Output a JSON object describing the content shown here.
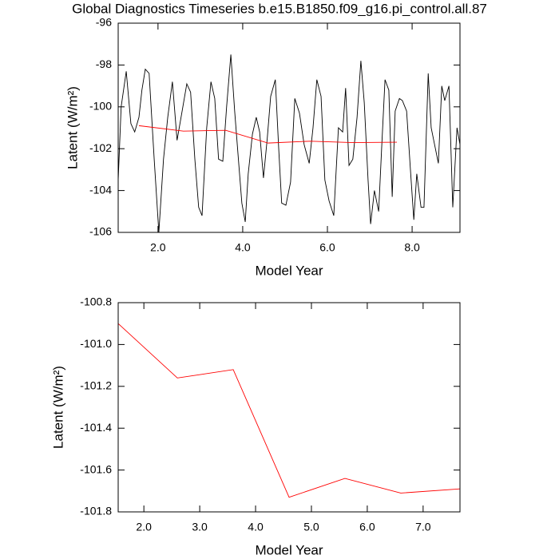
{
  "chart_data": [
    {
      "type": "line",
      "title": "Global Diagnostics Timeseries b.e15.B1850.f09_g16.pi_control.all.87",
      "x_label": "Model Year",
      "y_label": "Latent (W/m²)",
      "xlim": [
        1.06,
        9.13
      ],
      "ylim": [
        -106,
        -96
      ],
      "xticks": [
        {
          "value": 2,
          "label": "2.0"
        },
        {
          "value": 4,
          "label": "4.0"
        },
        {
          "value": 6,
          "label": "6.0"
        },
        {
          "value": 8,
          "label": "8.0"
        }
      ],
      "yticks": [
        -106,
        -104,
        -102,
        -100,
        -98,
        -96
      ],
      "series": [
        {
          "color": "#000000",
          "x": [
            1.06,
            1.13,
            1.25,
            1.36,
            1.45,
            1.55,
            1.62,
            1.7,
            1.79,
            1.91,
            2.02,
            2.13,
            2.23,
            2.34,
            2.45,
            2.57,
            2.68,
            2.77,
            2.87,
            2.96,
            3.04,
            3.15,
            3.25,
            3.34,
            3.43,
            3.53,
            3.62,
            3.72,
            3.81,
            3.91,
            3.98,
            4.06,
            4.13,
            4.23,
            4.32,
            4.4,
            4.49,
            4.58,
            4.66,
            4.77,
            4.85,
            4.92,
            5.02,
            5.13,
            5.23,
            5.34,
            5.45,
            5.57,
            5.66,
            5.75,
            5.85,
            5.94,
            6.04,
            6.15,
            6.26,
            6.36,
            6.43,
            6.51,
            6.6,
            6.7,
            6.79,
            6.87,
            6.96,
            7.02,
            7.11,
            7.21,
            7.28,
            7.36,
            7.45,
            7.53,
            7.6,
            7.7,
            7.77,
            7.87,
            7.96,
            8.04,
            8.11,
            8.21,
            8.28,
            8.38,
            8.45,
            8.53,
            8.62,
            8.7,
            8.77,
            8.87,
            8.96,
            9.06,
            9.13
          ],
          "values": [
            -103.5,
            -100,
            -98.3,
            -100.8,
            -101.2,
            -100.5,
            -99.2,
            -98.2,
            -98.4,
            -102.5,
            -106,
            -102.5,
            -100.5,
            -98.8,
            -101.6,
            -100.2,
            -98.9,
            -99.3,
            -102.5,
            -104.8,
            -105.2,
            -101,
            -98.8,
            -99.6,
            -102.5,
            -102.6,
            -100,
            -97.5,
            -100.2,
            -102.8,
            -104.6,
            -105.5,
            -103.2,
            -101.3,
            -100.5,
            -101.2,
            -103.4,
            -101.5,
            -99.5,
            -98.7,
            -102,
            -104.6,
            -104.7,
            -103.6,
            -99.6,
            -100.3,
            -101.8,
            -102.7,
            -101,
            -98.7,
            -99.5,
            -103.5,
            -104.5,
            -105.2,
            -101,
            -101.2,
            -99.1,
            -102.8,
            -102.5,
            -100.5,
            -97.8,
            -99.8,
            -103.5,
            -105.6,
            -104,
            -105,
            -102,
            -98.7,
            -99.2,
            -104.3,
            -100.2,
            -99.6,
            -99.7,
            -100.2,
            -103,
            -105.4,
            -103.2,
            -104.8,
            -104.8,
            -98.4,
            -101,
            -101.8,
            -102.7,
            -99,
            -99.7,
            -99,
            -104.8,
            -101,
            -101.8
          ]
        },
        {
          "color": "#ff0000",
          "x": [
            1.55,
            2.6,
            3.6,
            4.6,
            5.6,
            6.6,
            7.64
          ],
          "values": [
            -100.9,
            -101.16,
            -101.12,
            -101.73,
            -101.64,
            -101.71,
            -101.69
          ]
        }
      ]
    },
    {
      "type": "line",
      "x_label": "Model Year",
      "y_label": "Latent (W/m²)",
      "xlim": [
        1.54,
        7.66
      ],
      "ylim": [
        -101.8,
        -100.8
      ],
      "xticks": [
        {
          "value": 2,
          "label": "2.0"
        },
        {
          "value": 3,
          "label": "3.0"
        },
        {
          "value": 4,
          "label": "4.0"
        },
        {
          "value": 5,
          "label": "5.0"
        },
        {
          "value": 6,
          "label": "6.0"
        },
        {
          "value": 7,
          "label": "7.0"
        }
      ],
      "yticks": [
        -101.8,
        -101.6,
        -101.4,
        -101.2,
        {
          "value": -101,
          "label": "-101.0"
        },
        -100.8
      ],
      "series": [
        {
          "color": "#ff0000",
          "x": [
            1.54,
            2.6,
            3.6,
            4.6,
            5.6,
            6.6,
            7.66
          ],
          "values": [
            -100.9,
            -101.16,
            -101.12,
            -101.73,
            -101.64,
            -101.71,
            -101.69
          ]
        }
      ]
    }
  ]
}
